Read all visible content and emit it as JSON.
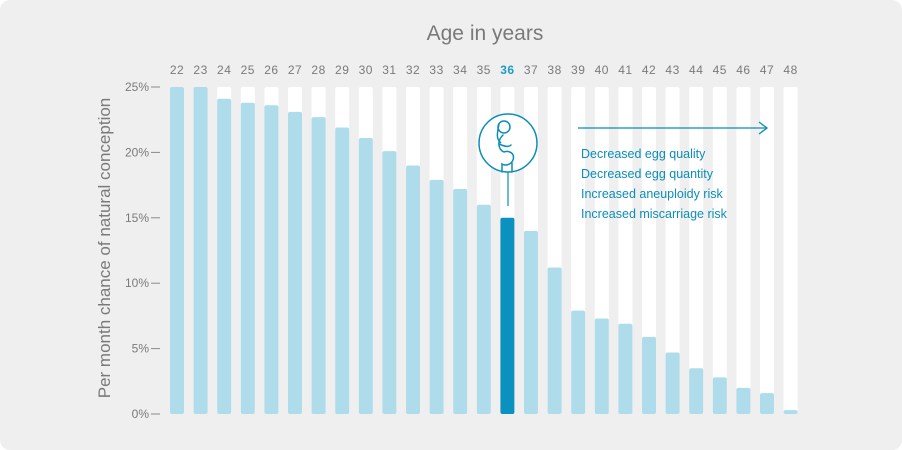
{
  "chart_data": {
    "type": "bar",
    "title": "Age in years",
    "ylabel": "Per month chance of natural conception",
    "xlabel": "",
    "ylim": [
      0,
      25
    ],
    "yticks": [
      "0%",
      "5%",
      "10%",
      "15%",
      "20%",
      "25%"
    ],
    "categories": [
      "22",
      "23",
      "24",
      "25",
      "26",
      "27",
      "28",
      "29",
      "30",
      "31",
      "32",
      "33",
      "34",
      "35",
      "36",
      "37",
      "38",
      "39",
      "40",
      "41",
      "42",
      "43",
      "44",
      "45",
      "46",
      "47",
      "48"
    ],
    "values": [
      25,
      25,
      24.1,
      23.8,
      23.6,
      23.1,
      22.7,
      21.9,
      21.1,
      20.1,
      19,
      17.9,
      17.2,
      16,
      15,
      14,
      11.2,
      7.9,
      7.3,
      6.9,
      5.9,
      4.7,
      3.5,
      2.8,
      2,
      1.6,
      0.3
    ],
    "highlight_category": "36",
    "annotations": [
      "Decreased egg quality",
      "Decreased egg quantity",
      "Increased aneuploidy risk",
      "Increased miscarriage risk"
    ],
    "colors": {
      "bar": "#aedcea",
      "bar_highlight": "#0b91bf",
      "track": "#ffffff",
      "annotation": "#0b8db8",
      "panel": "#efefef"
    },
    "icons": [
      "pregnant-woman-icon",
      "arrow-right-icon"
    ]
  }
}
